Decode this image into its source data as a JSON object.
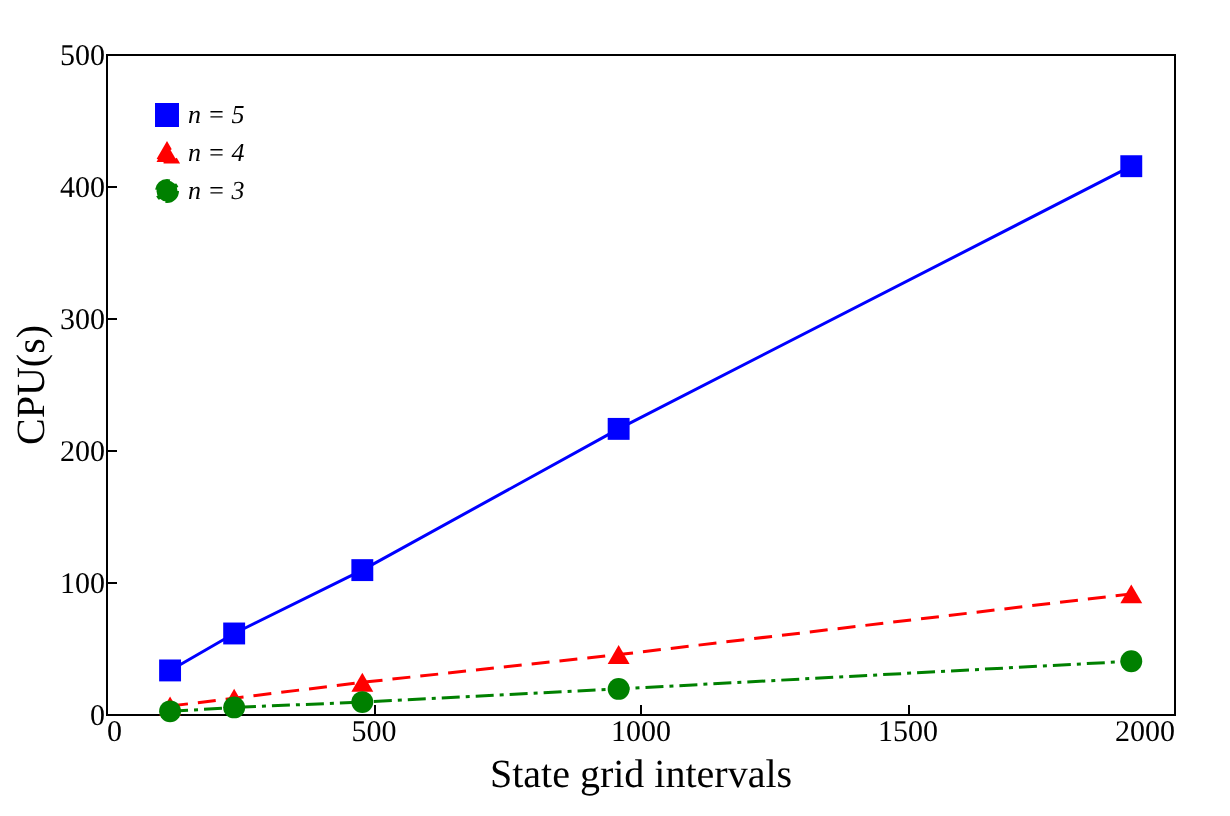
{
  "chart_data": {
    "type": "line",
    "xlabel": "State grid intervals",
    "ylabel": "CPU(s)",
    "x": [
      120,
      240,
      480,
      960,
      1920
    ],
    "series": [
      {
        "name": "n = 5",
        "color": "#0000ff",
        "marker": "square",
        "line_style": "solid",
        "values": [
          33,
          61,
          109,
          216,
          415
        ]
      },
      {
        "name": "n = 4",
        "color": "#ff0000",
        "marker": "triangle",
        "line_style": "dashed",
        "values": [
          6,
          12,
          24,
          45,
          91
        ]
      },
      {
        "name": "n = 3",
        "color": "#008000",
        "marker": "circle",
        "line_style": "dashdot",
        "values": [
          2,
          5,
          9,
          19,
          40
        ]
      }
    ],
    "xlim": [
      0,
      2000
    ],
    "xticks": [
      0,
      500,
      1000,
      1500,
      2000
    ],
    "ylim": [
      0,
      500
    ],
    "yticks": [
      0,
      100,
      200,
      300,
      400,
      500
    ],
    "grid": false,
    "legend": "top left"
  }
}
